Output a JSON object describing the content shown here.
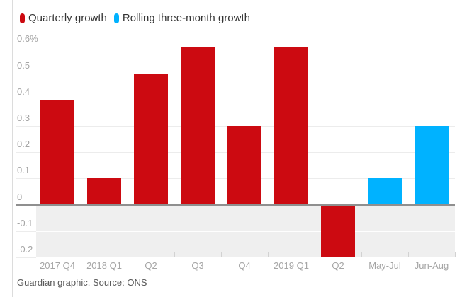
{
  "legend": [
    {
      "label": "Quarterly growth",
      "color": "#cc0a11"
    },
    {
      "label": "Rolling three-month growth",
      "color": "#00b2ff"
    }
  ],
  "footer": {
    "credit": "Guardian graphic. Source: ONS"
  },
  "colors": {
    "red_series": "#cc0a11",
    "blue_series": "#00b2ff",
    "gridline": "#ececec",
    "gridline_on_shade": "rgba(255,255,255,0.9)",
    "zero_line": "#8f8f8f",
    "negative_shade": "#efefef",
    "axis_text": "#a5a5a5",
    "tick_mark": "#d2d2d2"
  },
  "chart_data": {
    "type": "bar",
    "title": "",
    "xlabel": "",
    "ylabel": "",
    "categories": [
      "2017 Q4",
      "2018 Q1",
      "Q2",
      "Q3",
      "Q4",
      "2019 Q1",
      "Q2",
      "May-Jul",
      "Jun-Aug"
    ],
    "series": [
      {
        "name": "Quarterly growth",
        "color": "#cc0a11",
        "values": [
          0.4,
          0.1,
          0.5,
          0.6,
          0.3,
          0.6,
          -0.2,
          null,
          null
        ]
      },
      {
        "name": "Rolling three-month growth",
        "color": "#00b2ff",
        "values": [
          null,
          null,
          null,
          null,
          null,
          null,
          null,
          0.1,
          0.3
        ]
      }
    ],
    "y_ticks": [
      "0.6%",
      "0.5",
      "0.4",
      "0.3",
      "0.2",
      "0.1",
      "0",
      "-0.1",
      "-0.2"
    ],
    "y_tick_values": [
      0.6,
      0.5,
      0.4,
      0.3,
      0.2,
      0.1,
      0,
      -0.1,
      -0.2
    ],
    "ylim": [
      -0.2,
      0.6
    ],
    "grid": true,
    "legend_position": "top",
    "negative_region_shaded": true
  }
}
